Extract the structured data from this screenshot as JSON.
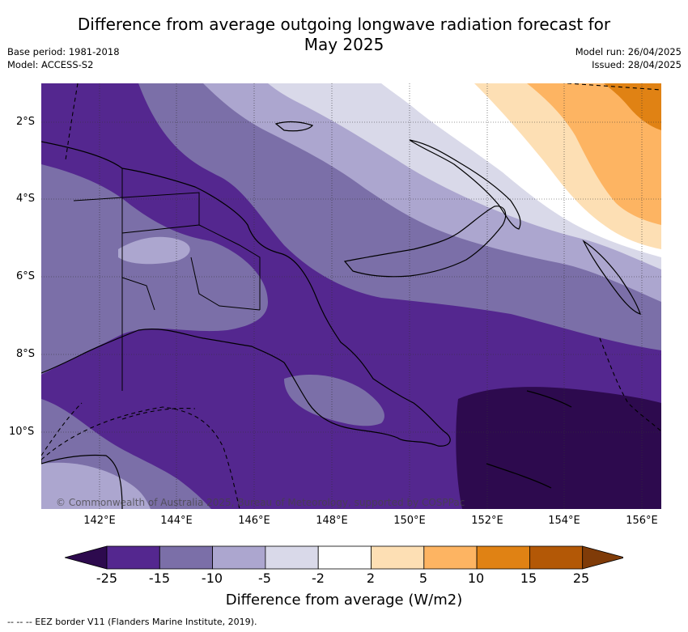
{
  "title": "Difference from average outgoing longwave radiation forecast for May 2025",
  "title_line1": "Difference from average outgoing longwave radiation forecast for",
  "title_line2": "May 2025",
  "meta": {
    "base_period": "Base period: 1981-2018",
    "model": "Model: ACCESS-S2",
    "model_run": "Model run: 26/04/2025",
    "issued": "Issued: 28/04/2025"
  },
  "map": {
    "lat_labels": [
      "2°S",
      "4°S",
      "6°S",
      "8°S",
      "10°S"
    ],
    "lon_labels": [
      "142°E",
      "144°E",
      "146°E",
      "148°E",
      "150°E",
      "152°E",
      "154°E",
      "156°E"
    ],
    "copyright": "© Commonwealth of Australia 2025, Bureau of Meteorology, supported by COSPPac"
  },
  "colorbar": {
    "ticks": [
      "-25",
      "-15",
      "-10",
      "-5",
      "-2",
      "2",
      "5",
      "10",
      "15",
      "25"
    ],
    "colors": [
      "#2d0a4e",
      "#54278f",
      "#7b6fa8",
      "#aca6cf",
      "#d9d9e9",
      "#ffffff",
      "#fddfb4",
      "#fdb462",
      "#e08214",
      "#b35806",
      "#7f3b08"
    ],
    "label": "Difference from average (W/m2)"
  },
  "footer": "-- -- -- EEZ border V11 (Flanders Marine Institute, 2019)."
}
